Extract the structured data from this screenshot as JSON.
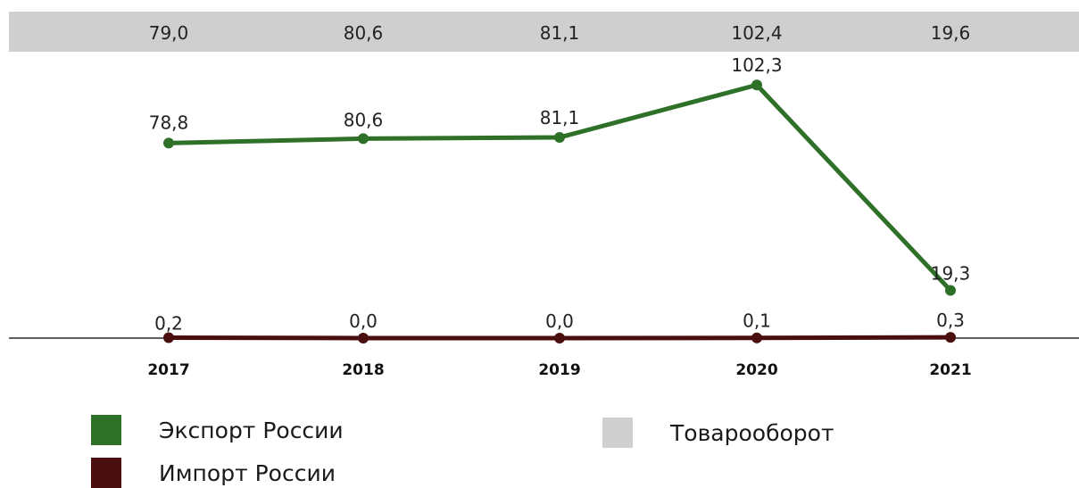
{
  "chart_data": {
    "type": "line",
    "categories": [
      "2017",
      "2018",
      "2019",
      "2020",
      "2021"
    ],
    "series": [
      {
        "name": "Экспорт России",
        "values": [
          78.8,
          80.6,
          81.1,
          102.3,
          19.3
        ],
        "labels": [
          "78,8",
          "80,6",
          "81,1",
          "102,3",
          "19,3"
        ],
        "color": "#2e7028"
      },
      {
        "name": "Импорт России",
        "values": [
          0.2,
          0.0,
          0.0,
          0.1,
          0.3
        ],
        "labels": [
          "0,2",
          "0,0",
          "0,0",
          "0,1",
          "0,3"
        ],
        "color": "#4a0e0e"
      }
    ],
    "turnover": {
      "name": "Товарооборот",
      "values": [
        79.0,
        80.6,
        81.1,
        102.4,
        19.6
      ],
      "labels": [
        "79,0",
        "80,6",
        "81,1",
        "102,4",
        "19,6"
      ],
      "color": "#cfcfcf"
    },
    "ylim": [
      0,
      115
    ],
    "title": "",
    "xlabel": "",
    "ylabel": "",
    "grid": false,
    "legend_position": "bottom"
  }
}
